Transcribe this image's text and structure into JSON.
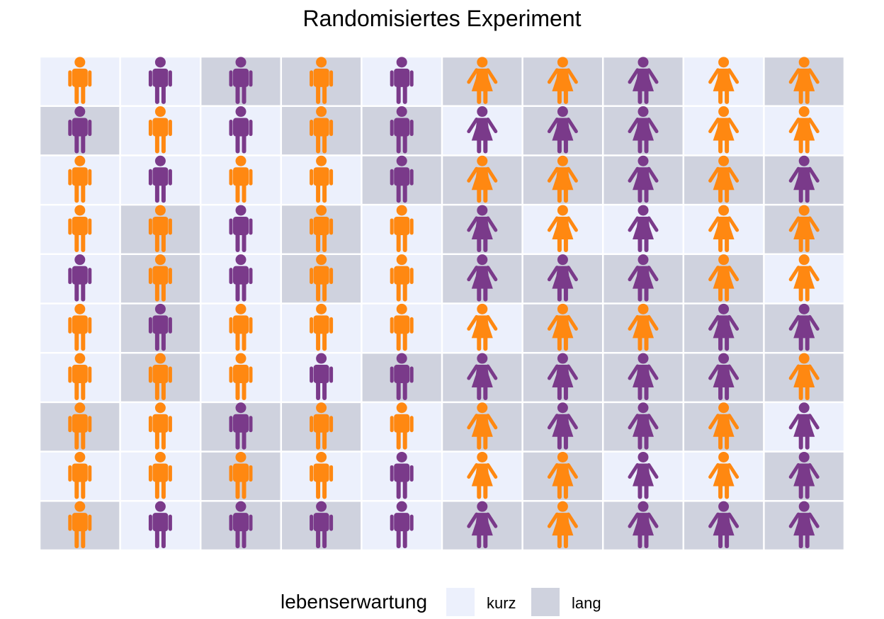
{
  "chart_data": {
    "type": "heatmap",
    "title": "Randomisiertes Experiment",
    "rows": 10,
    "cols": 10,
    "legend": {
      "title": "lebenserwartung",
      "position": "bottom",
      "entries": [
        {
          "label": "kurz",
          "color": "#ecf0fc"
        },
        {
          "label": "lang",
          "color": "#cfd2de"
        }
      ]
    },
    "figure_colors": {
      "orange": "#ff8811",
      "purple": "#7a3a8a"
    },
    "figure_types": {
      "m": "male-figure",
      "f": "female-figure"
    },
    "genders_by_column": [
      "m",
      "m",
      "m",
      "m",
      "m",
      "f",
      "f",
      "f",
      "f",
      "f"
    ],
    "background": [
      [
        "kurz",
        "kurz",
        "lang",
        "lang",
        "kurz",
        "lang",
        "lang",
        "lang",
        "kurz",
        "lang"
      ],
      [
        "lang",
        "kurz",
        "kurz",
        "lang",
        "lang",
        "kurz",
        "lang",
        "lang",
        "kurz",
        "kurz"
      ],
      [
        "kurz",
        "kurz",
        "kurz",
        "kurz",
        "lang",
        "lang",
        "lang",
        "lang",
        "lang",
        "lang"
      ],
      [
        "kurz",
        "lang",
        "kurz",
        "lang",
        "kurz",
        "lang",
        "kurz",
        "kurz",
        "kurz",
        "lang"
      ],
      [
        "kurz",
        "lang",
        "kurz",
        "lang",
        "kurz",
        "lang",
        "lang",
        "lang",
        "lang",
        "kurz"
      ],
      [
        "kurz",
        "lang",
        "kurz",
        "kurz",
        "kurz",
        "kurz",
        "lang",
        "lang",
        "lang",
        "lang"
      ],
      [
        "kurz",
        "lang",
        "kurz",
        "kurz",
        "lang",
        "lang",
        "lang",
        "lang",
        "lang",
        "lang"
      ],
      [
        "lang",
        "kurz",
        "lang",
        "lang",
        "kurz",
        "lang",
        "lang",
        "lang",
        "lang",
        "kurz"
      ],
      [
        "kurz",
        "kurz",
        "lang",
        "kurz",
        "kurz",
        "kurz",
        "lang",
        "kurz",
        "kurz",
        "lang"
      ],
      [
        "lang",
        "kurz",
        "lang",
        "lang",
        "kurz",
        "lang",
        "lang",
        "lang",
        "lang",
        "lang"
      ]
    ],
    "figure_color": [
      [
        "orange",
        "purple",
        "purple",
        "orange",
        "purple",
        "orange",
        "orange",
        "purple",
        "orange",
        "orange"
      ],
      [
        "purple",
        "orange",
        "purple",
        "orange",
        "purple",
        "purple",
        "purple",
        "purple",
        "orange",
        "orange"
      ],
      [
        "orange",
        "purple",
        "orange",
        "orange",
        "purple",
        "orange",
        "orange",
        "purple",
        "orange",
        "purple"
      ],
      [
        "orange",
        "orange",
        "purple",
        "orange",
        "orange",
        "purple",
        "orange",
        "purple",
        "orange",
        "orange"
      ],
      [
        "purple",
        "orange",
        "purple",
        "orange",
        "orange",
        "purple",
        "purple",
        "purple",
        "orange",
        "orange"
      ],
      [
        "orange",
        "purple",
        "orange",
        "orange",
        "orange",
        "orange",
        "orange",
        "orange",
        "purple",
        "purple"
      ],
      [
        "orange",
        "orange",
        "orange",
        "purple",
        "purple",
        "purple",
        "purple",
        "purple",
        "purple",
        "orange"
      ],
      [
        "orange",
        "orange",
        "purple",
        "orange",
        "orange",
        "orange",
        "purple",
        "purple",
        "orange",
        "purple"
      ],
      [
        "orange",
        "orange",
        "orange",
        "orange",
        "purple",
        "orange",
        "orange",
        "purple",
        "orange",
        "purple"
      ],
      [
        "orange",
        "purple",
        "purple",
        "purple",
        "purple",
        "purple",
        "orange",
        "purple",
        "purple",
        "purple"
      ]
    ]
  }
}
